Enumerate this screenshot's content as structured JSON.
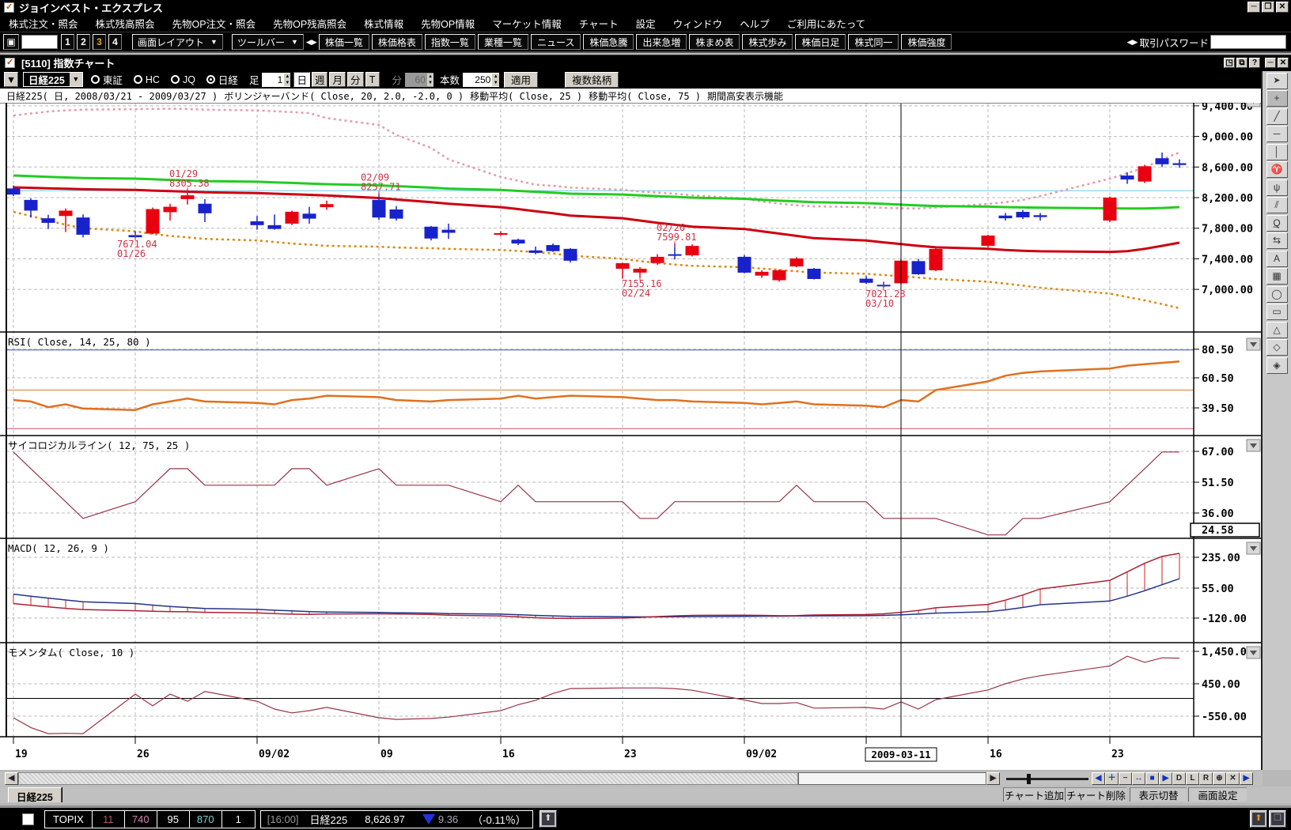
{
  "app": {
    "title": "ジョインベスト・エクスプレス"
  },
  "menu": {
    "items": [
      "株式注文・照会",
      "株式残高照会",
      "先物OP注文・照会",
      "先物OP残高照会",
      "株式情報",
      "先物OP情報",
      "マーケット情報",
      "チャート",
      "設定",
      "ウィンドウ",
      "ヘルプ",
      "ご利用にあたって"
    ]
  },
  "toolbar": {
    "preset_buttons": [
      "1",
      "2",
      "3",
      "4"
    ],
    "active_preset": "3",
    "active_color": "#e8a020",
    "layout_button": "画面レイアウト",
    "toolbar_button": "ツールバー",
    "quick_buttons": [
      "株価一覧",
      "株価格表",
      "指数一覧",
      "業種一覧",
      "ニュース",
      "株価急騰",
      "出来急増",
      "株まめ表",
      "株式歩み",
      "株価日足",
      "株式同一",
      "株価強度"
    ],
    "password_label": "取引パスワード"
  },
  "chart_window": {
    "title": "[5110] 指数チャート",
    "controls": {
      "symbol": "日経225",
      "markets": [
        "東証",
        "HC",
        "JQ",
        "日経"
      ],
      "selected_market": "日経",
      "bar_label": "足",
      "bar_value": "1",
      "period_buttons": [
        "日",
        "週",
        "月",
        "分",
        "T"
      ],
      "active_period": "日",
      "minute_label": "分",
      "minute_value": "60",
      "count_label": "本数",
      "count_value": "250",
      "apply_button": "適用",
      "multi_button": "複数銘柄"
    }
  },
  "chart_data": {
    "type": "candlestick",
    "title": "日経225( 日, 2008/03/21 - 2009/03/27 )",
    "studies": [
      "ボリンジャーバンド( Close, 20, 2.0, -2.0, 0 )",
      "移動平均( Close, 25 )",
      "移動平均( Close, 75 )",
      "期間高安表示機能"
    ],
    "x_tick_labels": [
      "19",
      "26",
      "09/02",
      "09",
      "16",
      "23",
      "09/02",
      "09",
      "16",
      "23"
    ],
    "crosshair_date": "2009-03-11",
    "crosshair_bar": "03/11",
    "up_color": "#e80010",
    "down_color": "#1822cc",
    "main_yticks": [
      9400,
      9000,
      8600,
      8200,
      7800,
      7400,
      7000
    ],
    "hline_price": 8290,
    "hline_color": "#70c8e8",
    "bars": [
      [
        "01/19",
        8320,
        8360,
        8220,
        8240
      ],
      [
        "01/20",
        8170,
        8190,
        7940,
        8030
      ],
      [
        "01/21",
        7930,
        7975,
        7790,
        7870
      ],
      [
        "01/22",
        7960,
        8060,
        7750,
        8030
      ],
      [
        "01/23",
        7940,
        7980,
        7680,
        7715
      ],
      [
        "01/26",
        7710,
        7760,
        7671.04,
        7682
      ],
      [
        "01/27",
        7730,
        8070,
        7720,
        8050
      ],
      [
        "01/28",
        8010,
        8120,
        7900,
        8080
      ],
      [
        "01/29",
        8180,
        8305.38,
        8110,
        8230
      ],
      [
        "01/30",
        8120,
        8180,
        7880,
        7995
      ],
      [
        "02/02",
        7890,
        7960,
        7780,
        7840
      ],
      [
        "02/03",
        7840,
        7980,
        7780,
        7790
      ],
      [
        "02/04",
        7860,
        8030,
        7840,
        8015
      ],
      [
        "02/05",
        7990,
        8080,
        7860,
        7925
      ],
      [
        "02/06",
        8075,
        8160,
        8040,
        8115
      ],
      [
        "02/09",
        8170,
        8257.71,
        7910,
        7940
      ],
      [
        "02/10",
        8045,
        8090,
        7900,
        7925
      ],
      [
        "02/12",
        7820,
        7830,
        7640,
        7665
      ],
      [
        "02/13",
        7780,
        7860,
        7660,
        7740
      ],
      [
        "02/16",
        7715,
        7760,
        7700,
        7735
      ],
      [
        "02/17",
        7650,
        7665,
        7580,
        7600
      ],
      [
        "02/18",
        7510,
        7560,
        7460,
        7478
      ],
      [
        "02/19",
        7580,
        7600,
        7490,
        7500
      ],
      [
        "02/20",
        7530,
        7540,
        7350,
        7375
      ],
      [
        "02/23",
        7270,
        7350,
        7140,
        7343
      ],
      [
        "02/24",
        7220,
        7290,
        7155.16,
        7270
      ],
      [
        "02/25",
        7345,
        7460,
        7320,
        7426
      ],
      [
        "02/26",
        7460,
        7599.81,
        7390,
        7442
      ],
      [
        "02/27",
        7445,
        7590,
        7430,
        7568
      ],
      [
        "03/02",
        7426,
        7450,
        7210,
        7219
      ],
      [
        "03/03",
        7180,
        7250,
        7150,
        7230
      ],
      [
        "03/04",
        7120,
        7260,
        7100,
        7250
      ],
      [
        "03/05",
        7300,
        7420,
        7290,
        7405
      ],
      [
        "03/06",
        7270,
        7280,
        7130,
        7136
      ],
      [
        "03/09",
        7140,
        7180,
        7070,
        7086
      ],
      [
        "03/10",
        7060,
        7100,
        7021.28,
        7055
      ],
      [
        "03/11",
        7080,
        7390,
        7070,
        7376
      ],
      [
        "03/12",
        7370,
        7400,
        7190,
        7198
      ],
      [
        "03/13",
        7250,
        7540,
        7240,
        7529
      ],
      [
        "03/16",
        7570,
        7715,
        7550,
        7704
      ],
      [
        "03/17",
        7965,
        8000,
        7900,
        7930
      ],
      [
        "03/18",
        8014,
        8040,
        7920,
        7942
      ],
      [
        "03/19",
        7970,
        8000,
        7900,
        7946
      ],
      [
        "03/23",
        7900,
        8215,
        7880,
        8200
      ],
      [
        "03/24",
        8489,
        8530,
        8380,
        8437
      ],
      [
        "03/25",
        8410,
        8630,
        8390,
        8610
      ],
      [
        "03/26",
        8715,
        8790,
        8600,
        8636
      ],
      [
        "03/27",
        8650,
        8700,
        8590,
        8627
      ]
    ],
    "overlays": {
      "ma25_color": "#cc0011",
      "ma75_color": "#22cc22",
      "boll_color_upper": "#e89aa8",
      "boll_color_lower": "#dd8811",
      "ma25": [
        8334,
        8328,
        8322,
        8316,
        8310,
        8300,
        8292,
        8285,
        8278,
        8270,
        8260,
        8252,
        8244,
        8236,
        8228,
        8195,
        8175,
        8140,
        8120,
        8075,
        8050,
        8022,
        7995,
        7965,
        7930,
        7900,
        7870,
        7845,
        7820,
        7790,
        7760,
        7730,
        7700,
        7670,
        7640,
        7615,
        7592,
        7570,
        7550,
        7530,
        7515,
        7505,
        7498,
        7490,
        7500,
        7530,
        7570,
        7611
      ],
      "ma75": [
        8489,
        8480,
        8472,
        8464,
        8456,
        8448,
        8440,
        8432,
        8424,
        8416,
        8408,
        8400,
        8392,
        8384,
        8376,
        8360,
        8350,
        8330,
        8318,
        8300,
        8288,
        8276,
        8264,
        8252,
        8240,
        8230,
        8220,
        8210,
        8200,
        8185,
        8172,
        8160,
        8150,
        8140,
        8128,
        8118,
        8108,
        8098,
        8090,
        8082,
        8076,
        8072,
        8068,
        8060,
        8058,
        8058,
        8065,
        8076
      ],
      "boll_upper": [
        9274,
        9300,
        9326,
        9340,
        9350,
        9357,
        9360,
        9362,
        9360,
        9350,
        9340,
        9330,
        9318,
        9305,
        9240,
        9150,
        9020,
        8850,
        8700,
        8470,
        8420,
        8370,
        8355,
        8330,
        8303,
        8280,
        8265,
        8252,
        8230,
        8190,
        8148,
        8120,
        8100,
        8085,
        8075,
        8066,
        8060,
        8058,
        8070,
        8117,
        8140,
        8170,
        8220,
        8448,
        8520,
        8593,
        8700,
        8790
      ],
      "boll_lower": [
        8014,
        7960,
        7900,
        7845,
        7800,
        7760,
        7725,
        7700,
        7680,
        7660,
        7640,
        7620,
        7600,
        7585,
        7570,
        7558,
        7548,
        7538,
        7530,
        7515,
        7502,
        7488,
        7470,
        7440,
        7400,
        7370,
        7345,
        7325,
        7308,
        7290,
        7272,
        7255,
        7238,
        7220,
        7205,
        7188,
        7172,
        7155,
        7135,
        7100,
        7075,
        7050,
        7022,
        6945,
        6900,
        6857,
        6808,
        6754
      ]
    },
    "annotations": [
      {
        "date": "01/29",
        "value": "8305.38",
        "kind": "high"
      },
      {
        "date": "02/09",
        "value": "8257.71",
        "kind": "high"
      },
      {
        "date": "02/26",
        "value": "7599.81",
        "kind": "high"
      },
      {
        "date": "01/26",
        "value": "7671.04",
        "kind": "low"
      },
      {
        "date": "02/24",
        "value": "7155.16",
        "kind": "low"
      },
      {
        "date": "03/10",
        "value": "7021.28",
        "kind": "low"
      }
    ],
    "panels": [
      {
        "name": "rsi",
        "label": "RSI( Close, 14, 25, 80 )",
        "ticks": [
          80.5,
          60.5,
          39.5
        ],
        "tick_labels": [
          "80.50",
          "60.50",
          "39.50"
        ],
        "guides": [
          {
            "v": 80,
            "color": "#3c50c0"
          },
          {
            "v": 52,
            "color": "#e07820"
          },
          {
            "v": 25,
            "color": "#c85060"
          }
        ],
        "line_color": "#e07020",
        "values": [
          45,
          44,
          40,
          42,
          39,
          38,
          42,
          44,
          46,
          44,
          43,
          42,
          45,
          46,
          48,
          47,
          45,
          44,
          45,
          46,
          48,
          46,
          47,
          48,
          47,
          46,
          45,
          45,
          44,
          43,
          42,
          43,
          44,
          42,
          41,
          40,
          45,
          44,
          52,
          58,
          62,
          64,
          65,
          67,
          69,
          70,
          71,
          72
        ]
      },
      {
        "name": "psychological",
        "label": "サイコロジカルライン( 12, 75, 25 )",
        "ticks": [
          67.0,
          51.5,
          36.0
        ],
        "tick_labels": [
          "67.00",
          "51.50",
          "36.00"
        ],
        "value_box": "24.58",
        "line_color": "#993344",
        "values": [
          66.7,
          58.3,
          50,
          41.7,
          33.3,
          41.7,
          50,
          58.3,
          58.3,
          50,
          50,
          50,
          58.3,
          58.3,
          50,
          58.3,
          50,
          50,
          50,
          41.7,
          50,
          41.7,
          41.7,
          41.7,
          41.7,
          33.3,
          33.3,
          41.7,
          41.7,
          41.7,
          41.7,
          41.7,
          50,
          41.7,
          41.7,
          33.3,
          33.3,
          33.3,
          33.3,
          25,
          25,
          33.3,
          33.3,
          41.7,
          50,
          58.3,
          66.7,
          66.7
        ]
      },
      {
        "name": "macd",
        "label": "MACD( 12, 26, 9 )",
        "ticks": [
          235.0,
          55.0,
          -120.0
        ],
        "tick_labels": [
          "235.00",
          "55.00",
          "-120.00"
        ],
        "macd_color": "#aa2233",
        "signal_color": "#223388",
        "hist_color": "#cc2222",
        "macd": [
          -35,
          -45,
          -55,
          -63,
          -70,
          -77,
          -80,
          -82,
          -83,
          -86,
          -90,
          -94,
          -97,
          -98,
          -96,
          -95,
          -96,
          -99,
          -103,
          -108,
          -113,
          -118,
          -121,
          -122,
          -120,
          -116,
          -111,
          -107,
          -104,
          -103,
          -104,
          -106,
          -105,
          -102,
          -99,
          -95,
          -86,
          -75,
          -60,
          -40,
          -15,
          15,
          50,
          100,
          150,
          200,
          240,
          258
        ],
        "signal": [
          20,
          8,
          -3,
          -14,
          -25,
          -35,
          -44,
          -52,
          -58,
          -64,
          -69,
          -74,
          -78,
          -82,
          -85,
          -87,
          -89,
          -91,
          -94,
          -97,
          -100,
          -104,
          -107,
          -110,
          -112,
          -113,
          -113,
          -112,
          -111,
          -110,
          -109,
          -109,
          -108,
          -107,
          -106,
          -104,
          -101,
          -97,
          -91,
          -83,
          -72,
          -58,
          -42,
          -20,
          8,
          40,
          75,
          110
        ]
      },
      {
        "name": "momentum",
        "label": "モメンタム( Close, 10 )",
        "ticks": [
          1450.0,
          450.0,
          -550.0
        ],
        "tick_labels": [
          "1,450.00",
          "450.00",
          "-550.00"
        ],
        "line_color": "#993344",
        "zero_line": 0,
        "values": [
          -600,
          -900,
          -1090,
          -1080,
          -1090,
          130,
          -230,
          130,
          -90,
          210,
          -90,
          -330,
          -450,
          -380,
          -280,
          -600,
          -650,
          -620,
          -580,
          -380,
          -200,
          -60,
          150,
          300,
          320,
          320,
          320,
          300,
          250,
          -50,
          -160,
          -160,
          -130,
          -300,
          -280,
          -330,
          -110,
          -330,
          -40,
          260,
          450,
          600,
          700,
          1000,
          1300,
          1110,
          1250,
          1240
        ]
      }
    ]
  },
  "scroll_controls": {
    "zoom_buttons": [
      "◀",
      "＋",
      "−",
      "↔",
      "■",
      "▶",
      "D",
      "L",
      "R",
      "⊕",
      "✕",
      "▶"
    ]
  },
  "palette_tools": [
    "pointer",
    "crosshair",
    "trendline",
    "horizontal-line",
    "vertical-line",
    "alert-bell",
    "fibonacci-fan",
    "parallel-lines",
    "quote-list",
    "cycle-arrows",
    "text-label",
    "grid-table",
    "ellipse",
    "rectangle",
    "triangle",
    "eraser",
    "eraser-all"
  ],
  "bottom": {
    "tab": "日経225",
    "buttons": [
      "チャート追加",
      "チャート削除",
      "表示切替",
      "画面設定"
    ]
  },
  "status_bar": {
    "index_button": "TOPIX",
    "cells": [
      {
        "text": "11",
        "color": "#b05868"
      },
      {
        "text": "740",
        "color": "#d080b0"
      },
      {
        "text": "95",
        "color": "#ffffff"
      },
      {
        "text": "870",
        "color": "#7fd0d8"
      },
      {
        "text": "1",
        "color": "#ffffff"
      }
    ],
    "time": "[16:00]",
    "symbol": "日経225",
    "price": "8,626.97",
    "change": "9.36",
    "change_pct": "（-0.11％）",
    "down_color": "#2233dd"
  }
}
